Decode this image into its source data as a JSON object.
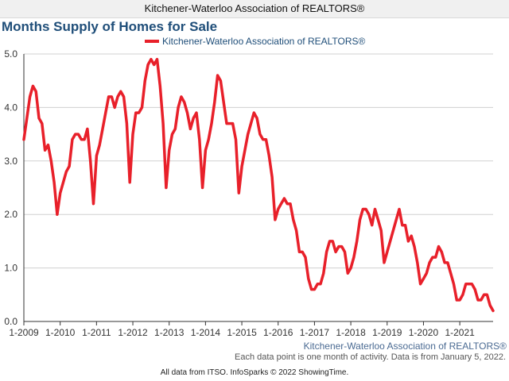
{
  "header": {
    "bar_title": "Kitchener-Waterloo Association of REALTORS®",
    "chart_title": "Months Supply of Homes for Sale"
  },
  "footer": {
    "area_label": "Kitchener-Waterloo Association of REALTORS®",
    "note": "Each data point is one month of activity. Data is from January 5, 2022.",
    "source": "All data from ITSO. InfoSparks © 2022 ShowingTime."
  },
  "colors": {
    "series": "#e8202a",
    "title": "#1f4e79",
    "area_label": "#4a6a92"
  },
  "chart_data": {
    "type": "line",
    "title": "Months Supply of Homes for Sale",
    "xlabel": "",
    "ylabel": "",
    "ylim": [
      0,
      5
    ],
    "yticks": [
      "0.0",
      "1.0",
      "2.0",
      "3.0",
      "4.0",
      "5.0"
    ],
    "xticks": [
      "1-2009",
      "1-2010",
      "1-2011",
      "1-2012",
      "1-2013",
      "1-2014",
      "1-2015",
      "1-2016",
      "1-2017",
      "1-2018",
      "1-2019",
      "1-2020",
      "1-2021"
    ],
    "x_start": "2009-01",
    "x_end": "2021-12",
    "grid": "horizontal",
    "legend_position": "top-center",
    "series": [
      {
        "name": "Kitchener-Waterloo Association of REALTORS®",
        "values": [
          3.4,
          3.8,
          4.2,
          4.4,
          4.3,
          3.8,
          3.7,
          3.2,
          3.3,
          3.0,
          2.6,
          2.0,
          2.4,
          2.6,
          2.8,
          2.9,
          3.4,
          3.5,
          3.5,
          3.4,
          3.4,
          3.6,
          3.0,
          2.2,
          3.1,
          3.3,
          3.6,
          3.9,
          4.2,
          4.2,
          4.0,
          4.2,
          4.3,
          4.2,
          3.7,
          2.6,
          3.5,
          3.9,
          3.9,
          4.0,
          4.5,
          4.8,
          4.9,
          4.8,
          4.9,
          4.4,
          3.7,
          2.5,
          3.2,
          3.5,
          3.6,
          4.0,
          4.2,
          4.1,
          3.9,
          3.6,
          3.8,
          3.9,
          3.4,
          2.5,
          3.2,
          3.4,
          3.7,
          4.1,
          4.6,
          4.5,
          4.1,
          3.7,
          3.7,
          3.7,
          3.4,
          2.4,
          2.9,
          3.2,
          3.5,
          3.7,
          3.9,
          3.8,
          3.5,
          3.4,
          3.4,
          3.1,
          2.7,
          1.9,
          2.1,
          2.2,
          2.3,
          2.2,
          2.2,
          1.9,
          1.7,
          1.3,
          1.3,
          1.2,
          0.8,
          0.6,
          0.6,
          0.7,
          0.7,
          0.9,
          1.3,
          1.5,
          1.5,
          1.3,
          1.4,
          1.4,
          1.3,
          0.9,
          1.0,
          1.2,
          1.5,
          1.9,
          2.1,
          2.1,
          2.0,
          1.8,
          2.1,
          1.9,
          1.7,
          1.1,
          1.3,
          1.5,
          1.7,
          1.9,
          2.1,
          1.8,
          1.8,
          1.5,
          1.6,
          1.4,
          1.1,
          0.7,
          0.8,
          0.9,
          1.1,
          1.2,
          1.2,
          1.4,
          1.3,
          1.1,
          1.1,
          0.9,
          0.7,
          0.4,
          0.4,
          0.5,
          0.7,
          0.7,
          0.7,
          0.6,
          0.4,
          0.4,
          0.5,
          0.5,
          0.3,
          0.2
        ]
      }
    ]
  }
}
